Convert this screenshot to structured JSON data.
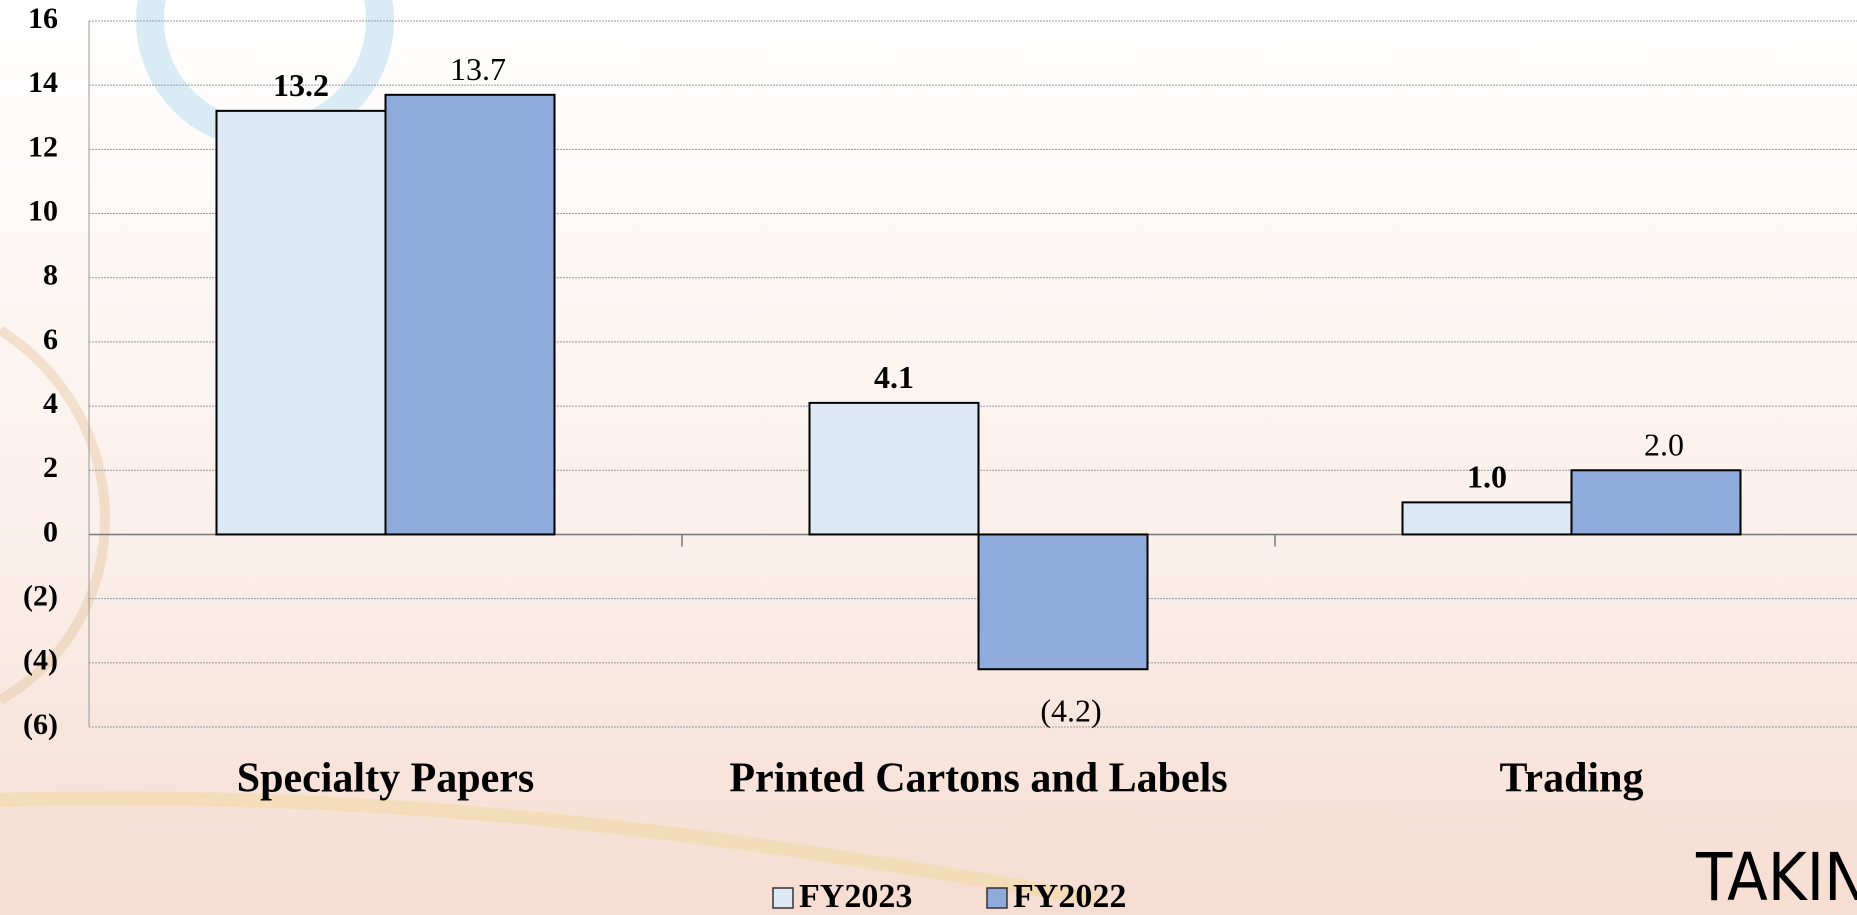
{
  "chart_data": {
    "type": "bar",
    "categories": [
      "Specialty Papers",
      "Printed Cartons and Labels",
      "Trading"
    ],
    "series": [
      {
        "name": "FY2023",
        "color": "#dce9f5",
        "values": [
          13.2,
          4.1,
          1.0
        ],
        "value_labels": [
          "13.2",
          "4.1",
          "1.0"
        ]
      },
      {
        "name": "FY2022",
        "color": "#8eabdc",
        "values": [
          13.7,
          -4.2,
          2.0
        ],
        "value_labels": [
          "13.7",
          "(4.2)",
          "2.0"
        ]
      }
    ],
    "ylim": [
      -6,
      16
    ],
    "yticks": [
      {
        "value": -6,
        "label": "(6)"
      },
      {
        "value": -4,
        "label": "(4)"
      },
      {
        "value": -2,
        "label": "(2)"
      },
      0,
      2,
      4,
      6,
      8,
      10,
      12,
      14,
      16
    ],
    "grid": true,
    "legend": "bottom",
    "logo": "TAKIN"
  }
}
